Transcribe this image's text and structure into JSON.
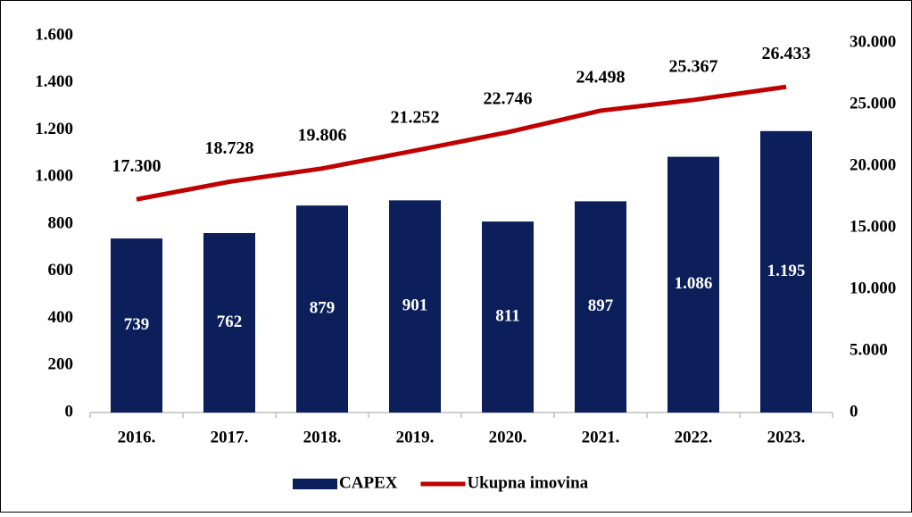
{
  "chart_data": {
    "type": "bar-line",
    "categories": [
      "2016.",
      "2017.",
      "2018.",
      "2019.",
      "2020.",
      "2021.",
      "2022.",
      "2023."
    ],
    "series": [
      {
        "name": "CAPEX",
        "type": "bar",
        "color": "#0c1f5b",
        "values": [
          739,
          762,
          879,
          901,
          811,
          897,
          1086,
          1195
        ],
        "value_labels": [
          "739",
          "762",
          "879",
          "901",
          "811",
          "897",
          "1.086",
          "1.195"
        ]
      },
      {
        "name": "Ukupna imovina",
        "type": "line",
        "axis": "y2",
        "color": "#c00000",
        "values": [
          17300,
          18728,
          19806,
          21252,
          22746,
          24498,
          25367,
          26433
        ],
        "value_labels": [
          "17.300",
          "18.728",
          "19.806",
          "21.252",
          "22.746",
          "24.498",
          "25.367",
          "26.433"
        ]
      }
    ],
    "ylim": [
      0,
      1600
    ],
    "yticks": [
      0,
      200,
      400,
      600,
      800,
      {
        "value": 1000,
        "label": "1.000"
      },
      {
        "value": 1200,
        "label": "1.200"
      },
      {
        "value": 1400,
        "label": "1.400"
      },
      {
        "value": 1600,
        "label": "1.600"
      }
    ],
    "y2lim": [
      0,
      30000
    ],
    "y2ticks": [
      0,
      {
        "value": 5000,
        "label": "5.000"
      },
      {
        "value": 10000,
        "label": "10.000"
      },
      {
        "value": 15000,
        "label": "15.000"
      },
      {
        "value": 20000,
        "label": "20.000"
      },
      {
        "value": 25000,
        "label": "25.000"
      },
      {
        "value": 30000,
        "label": "30.000"
      }
    ],
    "grid": false,
    "legend": "bottom"
  }
}
